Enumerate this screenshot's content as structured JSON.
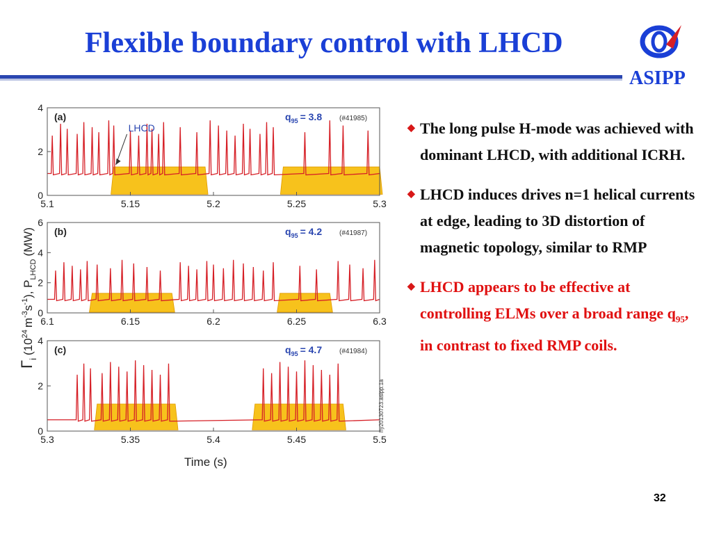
{
  "slide": {
    "title": "Flexible boundary control with LHCD",
    "org": "ASIPP",
    "page_number": "32",
    "bullets": [
      {
        "text": "The long pulse H-mode was achieved with dominant LHCD, with additional ICRH.",
        "color": "#111111"
      },
      {
        "text": "LHCD induces drives n=1 helical currents at edge, leading to 3D distortion of magnetic topology, similar to RMP",
        "color": "#111111"
      },
      {
        "text_before": "LHCD appears to be effective at controlling ELMs over a broad range q",
        "subscript": "95",
        "text_after": ", in contrast to fixed RMP coils.",
        "color": "#e01010"
      }
    ]
  },
  "figure": {
    "ylabel_main": "Γ",
    "ylabel_i": "i",
    "ylabel_rest": "(10",
    "ylabel_exp": "24",
    "ylabel_unit": "m",
    "ylabel_exp2": "-3",
    "ylabel_unit2": "s",
    "ylabel_exp3": "-1",
    "ylabel_tail": "),  P",
    "ylabel_sub": "LHCD",
    "ylabel_mw": "(MW)",
    "xlabel": "Time  (s)",
    "annotation": "LHCD",
    "watermark": "hy20130723.asipp.1a",
    "colors": {
      "elm": "#d61f26",
      "lhcd_fill": "#f7c21c",
      "lhcd_edge": "#e09a00",
      "label_blue": "#2a46b0"
    }
  },
  "chart_data": [
    {
      "type": "line",
      "panel": "(a)",
      "q_label": "q",
      "q_sub": "95",
      "q_value": "= 3.8",
      "shot": "(#41985)",
      "xlim": [
        5.1,
        5.3
      ],
      "ylim": [
        0,
        4
      ],
      "xticks": [
        "5.1",
        "5.15",
        "5.2",
        "5.25",
        "5.3"
      ],
      "yticks": [
        "0",
        "2",
        "4"
      ],
      "lhcd_intervals": [
        [
          5.14,
          5.195
        ],
        [
          5.242,
          5.3
        ]
      ],
      "lhcd_level": 1.3,
      "elm_baseline": 1.0,
      "elm_peaks": [
        5.103,
        5.108,
        5.112,
        5.118,
        5.122,
        5.127,
        5.131,
        5.137,
        5.14,
        5.15,
        5.155,
        5.16,
        5.163,
        5.167,
        5.17,
        5.18,
        5.19,
        5.198,
        5.203,
        5.208,
        5.213,
        5.218,
        5.222,
        5.228,
        5.232,
        5.236,
        5.255,
        5.27,
        5.278,
        5.293
      ],
      "elm_peak_height": 3.5
    },
    {
      "type": "line",
      "panel": "(b)",
      "q_label": "q",
      "q_sub": "95",
      "q_value": "= 4.2",
      "shot": "(#41987)",
      "xlim": [
        6.1,
        6.3
      ],
      "ylim": [
        0,
        6
      ],
      "xticks": [
        "6.1",
        "6.15",
        "6.2",
        "6.25",
        "6.3"
      ],
      "yticks": [
        "0",
        "2",
        "4",
        "6"
      ],
      "lhcd_intervals": [
        [
          6.127,
          6.175
        ],
        [
          6.24,
          6.27
        ]
      ],
      "lhcd_level": 1.3,
      "elm_baseline": 0.9,
      "elm_peaks": [
        6.105,
        6.11,
        6.115,
        6.12,
        6.124,
        6.13,
        6.138,
        6.145,
        6.152,
        6.16,
        6.168,
        6.18,
        6.185,
        6.19,
        6.196,
        6.2,
        6.206,
        6.212,
        6.218,
        6.224,
        6.23,
        6.236,
        6.252,
        6.262,
        6.275,
        6.282,
        6.29,
        6.297
      ],
      "elm_peak_height": 3.6
    },
    {
      "type": "line",
      "panel": "(c)",
      "q_label": "q",
      "q_sub": "95",
      "q_value": "= 4.7",
      "shot": "(#41984)",
      "xlim": [
        5.3,
        5.5
      ],
      "ylim": [
        0,
        4
      ],
      "xticks": [
        "5.3",
        "5.35",
        "5.4",
        "5.45",
        "5.5"
      ],
      "yticks": [
        "0",
        "2",
        "4"
      ],
      "lhcd_intervals": [
        [
          5.33,
          5.377
        ],
        [
          5.425,
          5.478
        ]
      ],
      "lhcd_level": 1.2,
      "elm_baseline": 0.5,
      "elm_peaks": [
        5.318,
        5.322,
        5.326,
        5.333,
        5.338,
        5.343,
        5.348,
        5.353,
        5.358,
        5.363,
        5.368,
        5.373,
        5.43,
        5.435,
        5.44,
        5.445,
        5.45,
        5.455,
        5.46,
        5.465,
        5.47,
        5.475
      ],
      "elm_peak_height": 3.2
    }
  ]
}
